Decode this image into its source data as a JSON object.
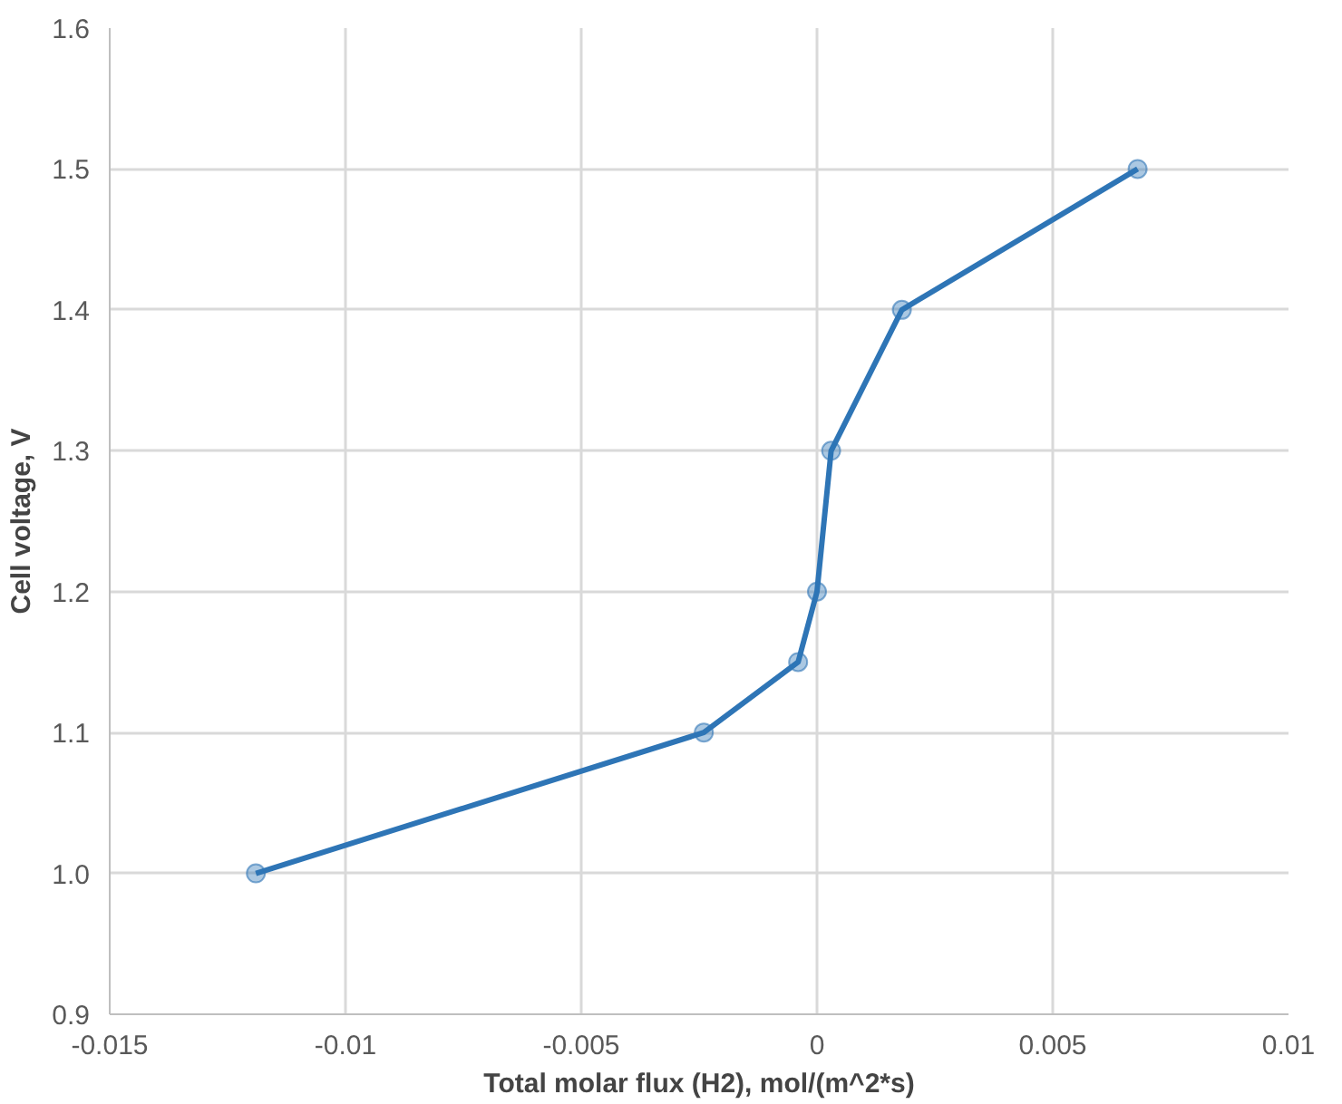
{
  "chart_data": {
    "type": "line",
    "xlabel": "Total molar flux (H2), mol/(m^2*s)",
    "ylabel": "Cell voltage, V",
    "x": [
      -0.0119,
      -0.0024,
      -0.0004,
      0,
      0.0003,
      0.0018,
      0.0068
    ],
    "series": [
      {
        "color": "#2e75b6",
        "values": [
          1.0,
          1.1,
          1.15,
          1.2,
          1.3,
          1.4,
          1.5
        ]
      }
    ],
    "xlim": [
      -0.015,
      0.01
    ],
    "ylim": [
      0.9,
      1.6
    ],
    "xticks": [
      -0.015,
      -0.01,
      -0.005,
      0,
      0.005,
      0.01
    ],
    "yticks": [
      {
        "value": 0.9,
        "label": "0.9"
      },
      {
        "value": 1.0,
        "label": "1.0"
      },
      {
        "value": 1.1,
        "label": "1.1"
      },
      {
        "value": 1.2,
        "label": "1.2"
      },
      {
        "value": 1.3,
        "label": "1.3"
      },
      {
        "value": 1.4,
        "label": "1.4"
      },
      {
        "value": 1.5,
        "label": "1.5"
      },
      {
        "value": 1.6,
        "label": "1.6"
      }
    ],
    "grid": true,
    "marker": "circle",
    "line_style": "solid"
  }
}
